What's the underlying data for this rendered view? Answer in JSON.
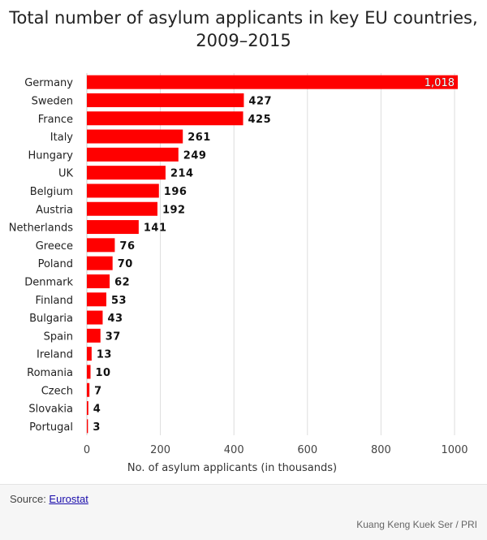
{
  "chart_data": {
    "type": "bar",
    "orientation": "horizontal",
    "title": "Total number of asylum applicants in key EU countries, 2009–2015",
    "xlabel": "No. of asylum applicants (in thousands)",
    "ylabel": "",
    "xlim": [
      0,
      1000
    ],
    "xticks": [
      0,
      200,
      400,
      600,
      800,
      1000
    ],
    "grid": true,
    "bar_color": "#ff0000",
    "categories": [
      "Germany",
      "Sweden",
      "France",
      "Italy",
      "Hungary",
      "UK",
      "Belgium",
      "Austria",
      "Netherlands",
      "Greece",
      "Poland",
      "Denmark",
      "Finland",
      "Bulgaria",
      "Spain",
      "Ireland",
      "Romania",
      "Czech",
      "Slovakia",
      "Portugal"
    ],
    "values": [
      1018,
      427,
      425,
      261,
      249,
      214,
      196,
      192,
      141,
      76,
      70,
      62,
      53,
      43,
      37,
      13,
      10,
      7,
      4,
      3
    ],
    "data_labels": [
      "1,018",
      "427",
      "425",
      "261",
      "249",
      "214",
      "196",
      "192",
      "141",
      "76",
      "70",
      "62",
      "53",
      "43",
      "37",
      "13",
      "10",
      "7",
      "4",
      "3"
    ]
  },
  "footer": {
    "source_prefix": "Source: ",
    "source_link": "Eurostat",
    "credit": "Kuang Keng Kuek Ser / PRI"
  }
}
